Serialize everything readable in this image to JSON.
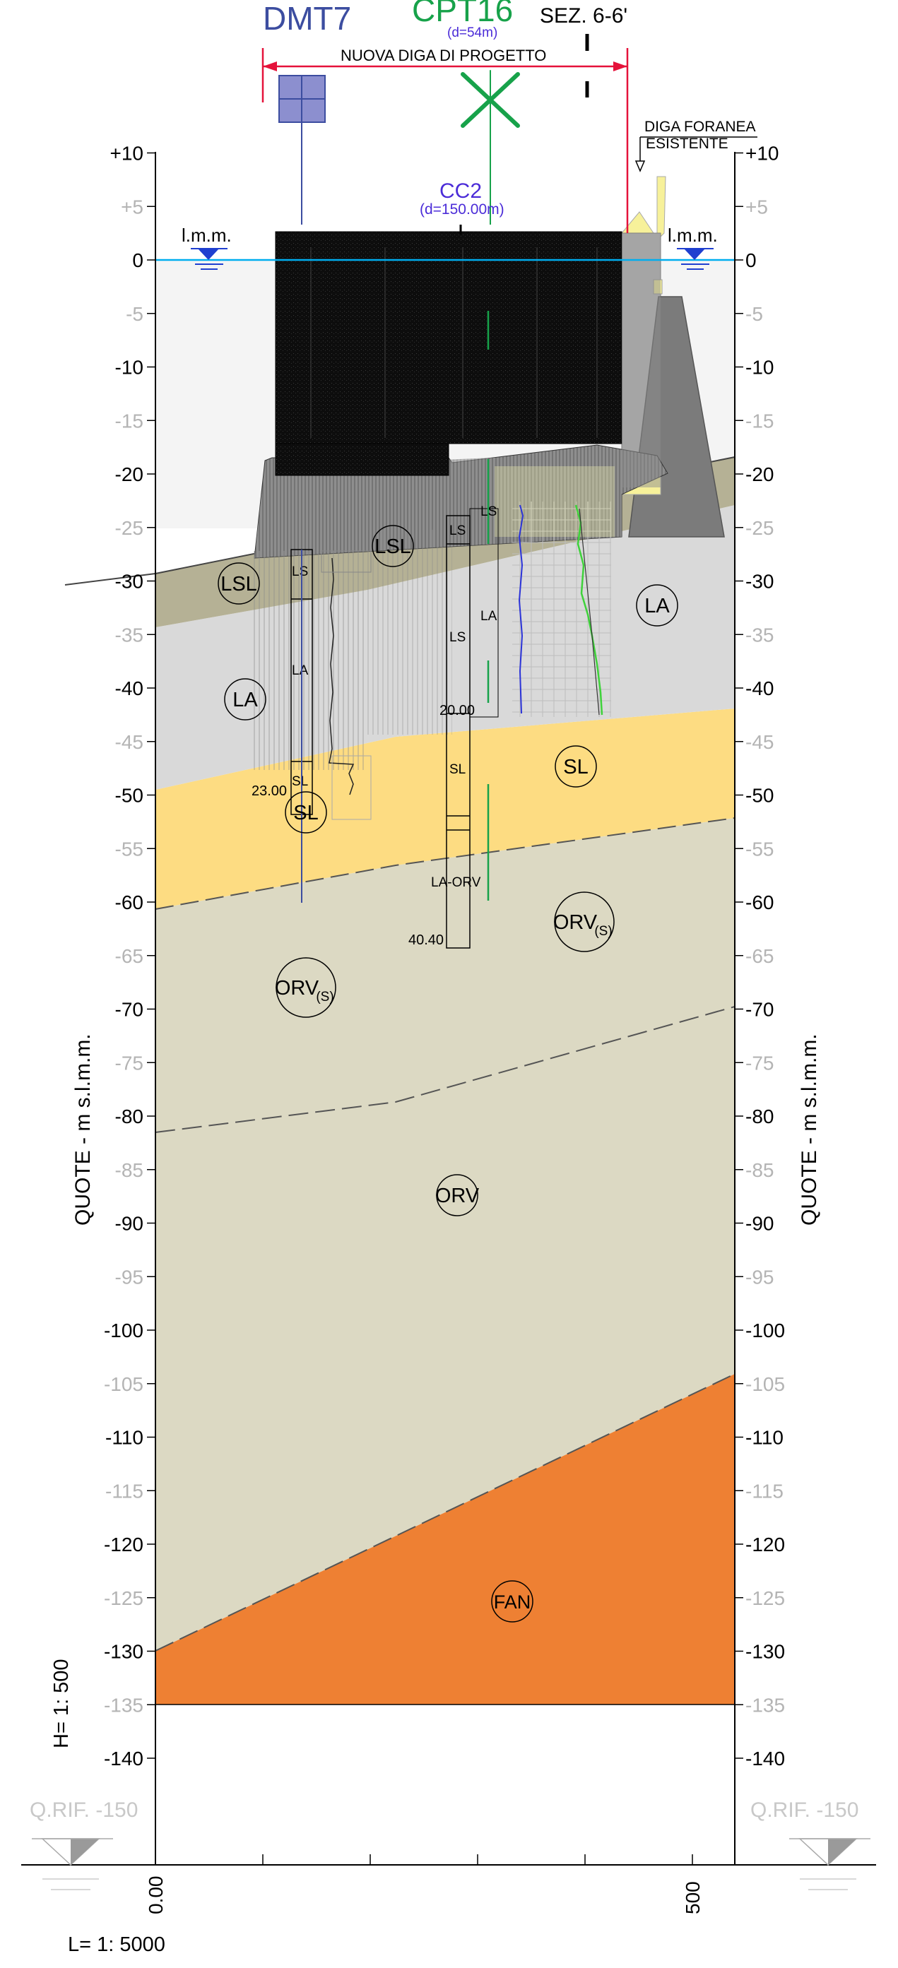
{
  "header": {
    "dmt": "DMT7",
    "cpt": "CPT16",
    "cpt_distance": "(d=54m)",
    "section": "SEZ. 6-6'",
    "new_dam": "NUOVA DIGA DI PROGETTO",
    "existing_dam_line1": "DIGA FORANEA",
    "existing_dam_line2": "ESISTENTE"
  },
  "borehole": {
    "name": "CC2",
    "distance": "(d=150.00m)",
    "depth_mid": "20.00",
    "depth_bottom": "40.40"
  },
  "sea_level": {
    "left": "l.m.m.",
    "right": "l.m.m."
  },
  "axis": {
    "title": "QUOTE - m s.l.m.m.",
    "ticks": [
      {
        "v": 10,
        "label": "+10",
        "major": true
      },
      {
        "v": 5,
        "label": "+5",
        "major": false
      },
      {
        "v": 0,
        "label": "0",
        "major": true
      },
      {
        "v": -5,
        "label": "-5",
        "major": false
      },
      {
        "v": -10,
        "label": "-10",
        "major": true
      },
      {
        "v": -15,
        "label": "-15",
        "major": false
      },
      {
        "v": -20,
        "label": "-20",
        "major": true
      },
      {
        "v": -25,
        "label": "-25",
        "major": false
      },
      {
        "v": -30,
        "label": "-30",
        "major": true
      },
      {
        "v": -35,
        "label": "-35",
        "major": false
      },
      {
        "v": -40,
        "label": "-40",
        "major": true
      },
      {
        "v": -45,
        "label": "-45",
        "major": false
      },
      {
        "v": -50,
        "label": "-50",
        "major": true
      },
      {
        "v": -55,
        "label": "-55",
        "major": false
      },
      {
        "v": -60,
        "label": "-60",
        "major": true
      },
      {
        "v": -65,
        "label": "-65",
        "major": false
      },
      {
        "v": -70,
        "label": "-70",
        "major": true
      },
      {
        "v": -75,
        "label": "-75",
        "major": false
      },
      {
        "v": -80,
        "label": "-80",
        "major": true
      },
      {
        "v": -85,
        "label": "-85",
        "major": false
      },
      {
        "v": -90,
        "label": "-90",
        "major": true
      },
      {
        "v": -95,
        "label": "-95",
        "major": false
      },
      {
        "v": -100,
        "label": "-100",
        "major": true
      },
      {
        "v": -105,
        "label": "-105",
        "major": false
      },
      {
        "v": -110,
        "label": "-110",
        "major": true
      },
      {
        "v": -115,
        "label": "-115",
        "major": false
      },
      {
        "v": -120,
        "label": "-120",
        "major": true
      },
      {
        "v": -125,
        "label": "-125",
        "major": false
      },
      {
        "v": -130,
        "label": "-130",
        "major": true
      },
      {
        "v": -135,
        "label": "-135",
        "major": false
      },
      {
        "v": -140,
        "label": "-140",
        "major": true
      }
    ],
    "x_start": "0.00",
    "x_end": "500",
    "ref_left": "Q.RIF. -150",
    "ref_right": "Q.RIF. -150"
  },
  "scales": {
    "vertical": "H= 1: 500",
    "horizontal": "L= 1: 5000"
  },
  "layers": {
    "ls_left": "LSL",
    "ls_mid": "LSL",
    "la_left": "LA",
    "la_right": "LA",
    "sl_left": "SL",
    "sl_right": "SL",
    "orv_s_left": "ORV",
    "orv_s_right": "ORV",
    "orv_s_sub": "(S)",
    "orv": "ORV",
    "fan": "FAN"
  },
  "log_dmt": {
    "ls": "LS",
    "la": "LA",
    "sl": "SL",
    "depth": "23.00"
  },
  "log_cc2": {
    "ls1": "LS",
    "ls2": "LS",
    "sl": "SL",
    "la_orv": "LA-ORV"
  },
  "log_cpt": {
    "ls": "LS",
    "la": "LA"
  },
  "colors": {
    "lsl": "#b5b195",
    "la": "#d9d9d9",
    "sl": "#fddc82",
    "orv": "#dcd9c3",
    "fan": "#ee8033",
    "sea": "#00aeef",
    "dmt": "#3c4da0",
    "cpt": "#17a24a",
    "borehole": "#4b2cd8",
    "dam_red": "#e5123a"
  }
}
